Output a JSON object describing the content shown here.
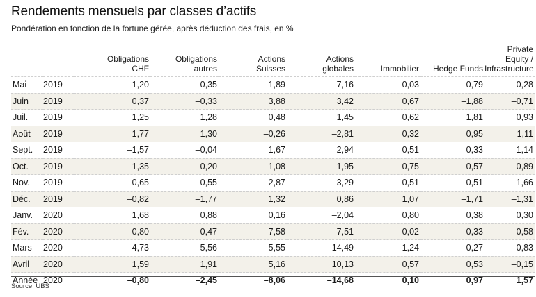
{
  "title": "Rendements mensuels par classes d’actifs",
  "subtitle": "Pondération en fonction de la fortune gérée, après déduction des frais, en %",
  "columns": [
    {
      "l1": "Obligations",
      "l2": "CHF"
    },
    {
      "l1": "Obligations",
      "l2": "autres"
    },
    {
      "l1": "Actions",
      "l2": "Suisses"
    },
    {
      "l1": "Actions",
      "l2": "globales"
    },
    {
      "l1": "Immobilier",
      "l2": ""
    },
    {
      "l1": "Hedge Funds",
      "l2": ""
    },
    {
      "l1": "Private Equity /",
      "l2": "Infrastructure"
    }
  ],
  "rows": [
    {
      "month": "Mai",
      "year": "2019",
      "values": [
        "1,20",
        "–0,35",
        "–1,89",
        "–7,16",
        "0,03",
        "–0,79",
        "0,28"
      ]
    },
    {
      "month": "Juin",
      "year": "2019",
      "values": [
        "0,37",
        "–0,33",
        "3,88",
        "3,42",
        "0,67",
        "–1,88",
        "–0,71"
      ]
    },
    {
      "month": "Juil.",
      "year": "2019",
      "values": [
        "1,25",
        "1,28",
        "0,48",
        "1,45",
        "0,62",
        "1,81",
        "0,93"
      ]
    },
    {
      "month": "Août",
      "year": "2019",
      "values": [
        "1,77",
        "1,30",
        "–0,26",
        "–2,81",
        "0,32",
        "0,95",
        "1,11"
      ]
    },
    {
      "month": "Sept.",
      "year": "2019",
      "values": [
        "–1,57",
        "–0,04",
        "1,67",
        "2,94",
        "0,51",
        "0,33",
        "1,14"
      ]
    },
    {
      "month": "Oct.",
      "year": "2019",
      "values": [
        "–1,35",
        "–0,20",
        "1,08",
        "1,95",
        "0,75",
        "–0,57",
        "0,89"
      ]
    },
    {
      "month": "Nov.",
      "year": "2019",
      "values": [
        "0,65",
        "0,55",
        "2,87",
        "3,29",
        "0,51",
        "0,51",
        "1,66"
      ]
    },
    {
      "month": "Déc.",
      "year": "2019",
      "values": [
        "–0,82",
        "–1,77",
        "1,32",
        "0,86",
        "1,07",
        "–1,71",
        "–1,31"
      ]
    },
    {
      "month": "Janv.",
      "year": "2020",
      "values": [
        "1,68",
        "0,88",
        "0,16",
        "–2,04",
        "0,80",
        "0,38",
        "0,30"
      ]
    },
    {
      "month": "Fév.",
      "year": "2020",
      "values": [
        "0,80",
        "0,47",
        "–7,58",
        "–7,51",
        "–0,02",
        "0,33",
        "0,58"
      ]
    },
    {
      "month": "Mars",
      "year": "2020",
      "values": [
        "–4,73",
        "–5,56",
        "–5,55",
        "–14,49",
        "–1,24",
        "–0,27",
        "0,83"
      ]
    },
    {
      "month": "Avril",
      "year": "2020",
      "values": [
        "1,59",
        "1,91",
        "5,16",
        "10,13",
        "0,57",
        "0,53",
        "–0,15"
      ]
    }
  ],
  "total": {
    "month": "Année",
    "year": "2020",
    "values": [
      "–0,80",
      "–2,45",
      "–8,06",
      "–14,68",
      "0,10",
      "0,97",
      "1,57"
    ]
  },
  "source": "Source: UBS"
}
